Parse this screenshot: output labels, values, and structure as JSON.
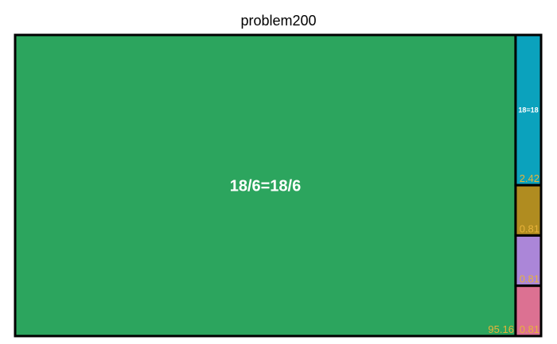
{
  "colors": {
    "border": "#000000",
    "label": "#ffffff",
    "value_label": "#e8b23a"
  },
  "chart_data": {
    "type": "treemap",
    "title": "problem200",
    "items": [
      {
        "label": "18/6=18/6",
        "value": 95.16,
        "value_label": "95.16",
        "color": "#2ca55e"
      },
      {
        "label": "18=18",
        "value": 2.42,
        "value_label": "2.42",
        "color": "#0ba2bd"
      },
      {
        "label": "",
        "value": 0.81,
        "value_label": "0.81",
        "color": "#b08c20"
      },
      {
        "label": "",
        "value": 0.81,
        "value_label": "0.81",
        "color": "#ab86d8"
      },
      {
        "label": "",
        "value": 0.81,
        "value_label": "0.81",
        "color": "#dc7192"
      }
    ]
  }
}
